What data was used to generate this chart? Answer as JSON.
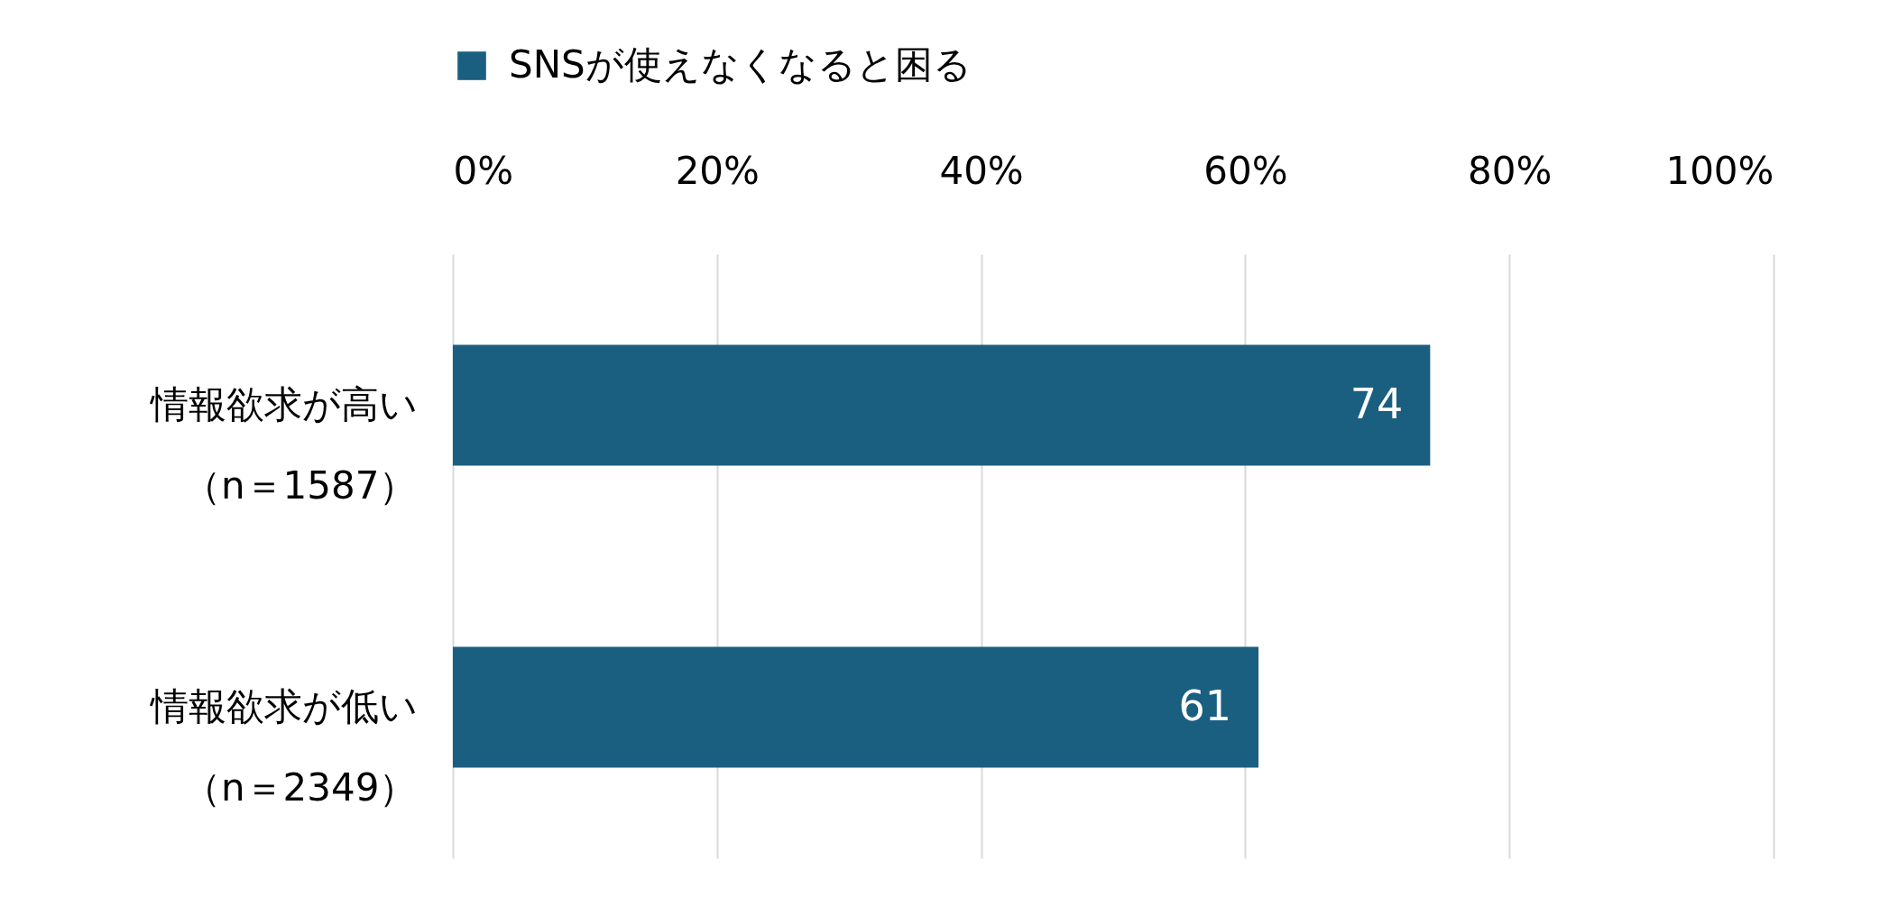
{
  "chart_data": {
    "type": "bar",
    "orientation": "horizontal",
    "categories": [
      "情報欲求が高い（n＝1587）",
      "情報欲求が低い（n＝2349）"
    ],
    "series": [
      {
        "name": "SNSが使えなくなると困る",
        "color": "#1a5f80",
        "values": [
          74,
          61
        ]
      }
    ],
    "xlim": [
      0,
      100
    ],
    "xticks": [
      {
        "value": 0,
        "label": "0%"
      },
      {
        "value": 20,
        "label": "20%"
      },
      {
        "value": 40,
        "label": "40%"
      },
      {
        "value": 60,
        "label": "60%"
      },
      {
        "value": 80,
        "label": "80%"
      },
      {
        "value": 100,
        "label": "100%"
      }
    ],
    "grid": "x",
    "legend": "top",
    "data_labels": true
  }
}
